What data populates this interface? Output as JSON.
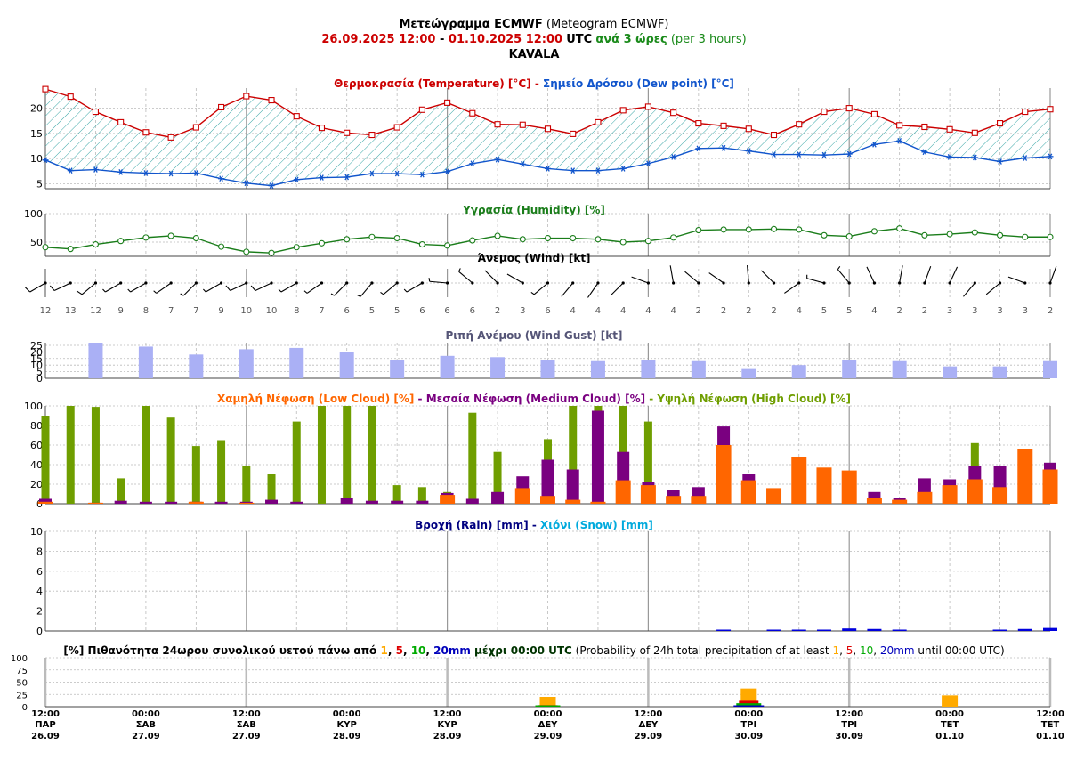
{
  "header": {
    "title_gr": "Μετεώγραμμα ECMWF",
    "title_en": "(Meteogram ECMWF)",
    "period_start": "26.09.2025 12:00",
    "period_dash": " - ",
    "period_end": "01.10.2025 12:00",
    "utc": "UTC",
    "step_gr": "ανά 3 ώρες",
    "step_en": "(per 3 hours)",
    "location": "KAVALA"
  },
  "colors": {
    "temperature": "#cc0000",
    "dewpoint": "#1155cc",
    "humidity": "#1a7d1a",
    "gust_bar": "#aab0f5",
    "gust_title": "#555577",
    "low_cloud": "#ff6600",
    "medium_cloud": "#7a0080",
    "high_cloud": "#6f9e00",
    "rain_title": "#000080",
    "rain_bar": "#0000dd",
    "snow_title": "#00aadd",
    "prob1": "#ffaa00",
    "prob5": "#dd0000",
    "prob10": "#00aa00",
    "prob20": "#0000bb",
    "hatch": "#3aa7a7"
  },
  "time_axis": {
    "steps": 41,
    "ticks": [
      {
        "time": "12:00",
        "day": "ΠΑΡ",
        "date": "26.09"
      },
      {
        "time": "00:00",
        "day": "ΣΑΒ",
        "date": "27.09"
      },
      {
        "time": "12:00",
        "day": "ΣΑΒ",
        "date": "27.09"
      },
      {
        "time": "00:00",
        "day": "ΚΥΡ",
        "date": "28.09"
      },
      {
        "time": "12:00",
        "day": "ΚΥΡ",
        "date": "28.09"
      },
      {
        "time": "00:00",
        "day": "ΔΕΥ",
        "date": "29.09"
      },
      {
        "time": "12:00",
        "day": "ΔΕΥ",
        "date": "29.09"
      },
      {
        "time": "00:00",
        "day": "ΤΡΙ",
        "date": "30.09"
      },
      {
        "time": "12:00",
        "day": "ΤΡΙ",
        "date": "30.09"
      },
      {
        "time": "00:00",
        "day": "ΤΕΤ",
        "date": "01.10"
      },
      {
        "time": "12:00",
        "day": "ΤΕΤ",
        "date": "01.10"
      }
    ]
  },
  "chart_data": [
    {
      "id": "temperature",
      "type": "line",
      "title_parts": [
        {
          "text": "Θερμοκρασία (Temperature) [°C]",
          "color": "temperature"
        },
        {
          "text": " - ",
          "color": "temperature"
        },
        {
          "text": "Σημείο Δρόσου (Dew point) [°C]",
          "color": "dewpoint"
        }
      ],
      "ylim": [
        4,
        24
      ],
      "yticks": [
        5,
        10,
        15,
        20
      ],
      "series": [
        {
          "name": "Θερμοκρασία (Temperature) [°C]",
          "values": [
            23.8,
            22.3,
            19.3,
            17.2,
            15.2,
            14.2,
            16.2,
            20.2,
            22.4,
            21.6,
            18.4,
            16.1,
            15.1,
            14.7,
            16.2,
            19.7,
            21.1,
            19.0,
            16.8,
            16.7,
            15.9,
            14.9,
            17.2,
            19.6,
            20.3,
            19.1,
            17.0,
            16.5,
            15.9,
            14.7,
            16.8,
            19.3,
            20.0,
            18.8,
            16.6,
            16.3,
            15.8,
            15.1,
            17.0,
            19.3,
            19.8
          ]
        },
        {
          "name": "Σημείο Δρόσου (Dew point) [°C]",
          "values": [
            9.7,
            7.6,
            7.8,
            7.3,
            7.1,
            7.0,
            7.1,
            6.0,
            5.1,
            4.6,
            5.8,
            6.2,
            6.3,
            7.0,
            7.0,
            6.8,
            7.4,
            9.0,
            9.8,
            8.9,
            8.0,
            7.6,
            7.6,
            8.0,
            9.0,
            10.3,
            12.0,
            12.1,
            11.5,
            10.8,
            10.8,
            10.7,
            10.9,
            12.8,
            13.5,
            11.3,
            10.3,
            10.2,
            9.4,
            10.1,
            10.4
          ]
        }
      ]
    },
    {
      "id": "humidity",
      "type": "line",
      "title": "Υγρασία (Humidity) [%]",
      "ylim": [
        25,
        100
      ],
      "yticks": [
        50,
        100
      ],
      "series": [
        {
          "name": "Υγρασία (Humidity) [%]",
          "values": [
            41,
            38,
            46,
            52,
            58,
            61,
            57,
            42,
            33,
            31,
            41,
            48,
            55,
            59,
            57,
            46,
            44,
            53,
            61,
            55,
            57,
            57,
            55,
            50,
            52,
            58,
            71,
            72,
            72,
            73,
            72,
            62,
            60,
            69,
            74,
            62,
            64,
            67,
            62,
            59,
            59
          ]
        }
      ]
    },
    {
      "id": "wind",
      "type": "wind",
      "title": "Άνεμος (Wind) [kt]",
      "speeds": [
        12,
        13,
        12,
        9,
        8,
        7,
        7,
        9,
        10,
        10,
        8,
        7,
        6,
        5,
        5,
        6,
        6,
        6,
        2,
        3,
        6,
        4,
        4,
        4,
        4,
        4,
        2,
        2,
        2,
        2,
        4,
        5,
        5,
        4,
        2,
        2,
        3,
        3,
        3,
        3,
        2
      ],
      "directions_deg": [
        240,
        245,
        230,
        240,
        240,
        235,
        225,
        240,
        245,
        245,
        240,
        235,
        225,
        220,
        230,
        240,
        275,
        310,
        315,
        300,
        230,
        220,
        215,
        225,
        290,
        350,
        310,
        305,
        355,
        315,
        235,
        285,
        320,
        335,
        10,
        20,
        25,
        220,
        230,
        290,
        20
      ]
    },
    {
      "id": "gust",
      "type": "bar",
      "title": "Ριπή Ανέμου (Wind Gust) [kt]",
      "ylim": [
        0,
        27
      ],
      "yticks": [
        0,
        5,
        10,
        15,
        20,
        25
      ],
      "x_index": [
        2,
        4,
        6,
        8,
        10,
        12,
        14,
        16,
        18,
        20,
        22,
        24,
        26,
        28,
        30,
        32,
        34,
        36,
        38,
        40
      ],
      "values": [
        27,
        24,
        18,
        22,
        23,
        20,
        14,
        17,
        16,
        14,
        13,
        14,
        13,
        7,
        10,
        14,
        13,
        9,
        9,
        13
      ]
    },
    {
      "id": "cloud",
      "type": "bar",
      "title_parts": [
        {
          "text": "Χαμηλή Νέφωση (Low Cloud) [%]",
          "color": "low_cloud"
        },
        {
          "text": " - ",
          "color": "medium_cloud"
        },
        {
          "text": "Μεσαία Νέφωση (Medium Cloud) [%]",
          "color": "medium_cloud"
        },
        {
          "text": " - ",
          "color": "high_cloud"
        },
        {
          "text": "Υψηλή Νέφωση (High Cloud) [%]",
          "color": "high_cloud"
        }
      ],
      "ylim": [
        0,
        100
      ],
      "yticks": [
        0,
        20,
        40,
        60,
        80,
        100
      ],
      "series": [
        {
          "name": "Υψηλή Νέφωση (High Cloud) [%]",
          "values": [
            90,
            100,
            99,
            26,
            100,
            88,
            59,
            65,
            39,
            30,
            84,
            100,
            100,
            100,
            19,
            17,
            12,
            93,
            53,
            20,
            66,
            100,
            100,
            100,
            84,
            10,
            10,
            8,
            25,
            5,
            5,
            5,
            5,
            8,
            5,
            5,
            25,
            62,
            0,
            0,
            0
          ]
        },
        {
          "name": "Μεσαία Νέφωση (Medium Cloud) [%]",
          "values": [
            5,
            0,
            1,
            3,
            2,
            2,
            2,
            2,
            2,
            4,
            2,
            0,
            6,
            3,
            3,
            3,
            11,
            5,
            12,
            28,
            45,
            35,
            95,
            53,
            22,
            14,
            17,
            79,
            30,
            2,
            0,
            0,
            0,
            12,
            6,
            26,
            25,
            39,
            39,
            0,
            42
          ]
        },
        {
          "name": "Χαμηλή Νέφωση (Low Cloud) [%]",
          "values": [
            2,
            0,
            1,
            0,
            0,
            0,
            2,
            0,
            1,
            0,
            0,
            0,
            0,
            0,
            0,
            0,
            9,
            0,
            0,
            16,
            8,
            4,
            2,
            24,
            19,
            8,
            8,
            60,
            24,
            16,
            48,
            37,
            34,
            6,
            4,
            12,
            19,
            25,
            17,
            56,
            35
          ]
        }
      ]
    },
    {
      "id": "precip",
      "type": "bar",
      "title_parts": [
        {
          "text": "Βροχή (Rain) [mm]",
          "color": "rain_title"
        },
        {
          "text": " - ",
          "color": "rain_title"
        },
        {
          "text": "Χιόνι (Snow) [mm]",
          "color": "snow_title"
        }
      ],
      "ylim": [
        0,
        10
      ],
      "yticks": [
        0,
        2,
        4,
        6,
        8,
        10
      ],
      "rain": [
        0,
        0,
        0,
        0,
        0,
        0,
        0,
        0,
        0,
        0,
        0,
        0,
        0,
        0,
        0,
        0,
        0,
        0,
        0,
        0,
        0,
        0,
        0,
        0,
        0,
        0,
        0,
        0.1,
        0,
        0.05,
        0.1,
        0.1,
        0.25,
        0.2,
        0.1,
        0,
        0,
        0,
        0.05,
        0.2,
        0.3
      ],
      "snow": [
        0,
        0,
        0,
        0,
        0,
        0,
        0,
        0,
        0,
        0,
        0,
        0,
        0,
        0,
        0,
        0,
        0,
        0,
        0,
        0,
        0,
        0,
        0,
        0,
        0,
        0,
        0,
        0,
        0,
        0,
        0,
        0,
        0,
        0,
        0,
        0,
        0,
        0,
        0,
        0,
        0
      ]
    },
    {
      "id": "probability",
      "type": "bar",
      "title_parts": [
        {
          "text": "[%] Πιθανότητα 24ωρου συνολικού υετού πάνω από ",
          "color": "#000000",
          "bold": true
        },
        {
          "text": "1",
          "color": "prob1",
          "bold": true
        },
        {
          "text": ", ",
          "color": "#000000",
          "bold": true
        },
        {
          "text": "5",
          "color": "prob5",
          "bold": true
        },
        {
          "text": ", ",
          "color": "#000000",
          "bold": true
        },
        {
          "text": "10",
          "color": "prob10",
          "bold": true
        },
        {
          "text": ", ",
          "color": "#000000",
          "bold": true
        },
        {
          "text": "20mm",
          "color": "prob20",
          "bold": true
        },
        {
          "text": " μέχρι 00:00 UTC",
          "color": "#003300",
          "bold": true
        },
        {
          "text": " (Probability of 24h total precipitation of at least ",
          "color": "#000000",
          "bold": false
        },
        {
          "text": "1",
          "color": "prob1",
          "bold": false
        },
        {
          "text": ", ",
          "color": "#000000",
          "bold": false
        },
        {
          "text": "5",
          "color": "prob5",
          "bold": false
        },
        {
          "text": ", ",
          "color": "#000000",
          "bold": false
        },
        {
          "text": "10",
          "color": "prob10",
          "bold": false
        },
        {
          "text": ", ",
          "color": "#000000",
          "bold": false
        },
        {
          "text": "20mm",
          "color": "prob20",
          "bold": false
        },
        {
          "text": " until 00:00 UTC)",
          "color": "#000000",
          "bold": false
        }
      ],
      "ylim": [
        0,
        100
      ],
      "yticks": [
        0,
        25,
        50,
        75,
        100
      ],
      "x_index": [
        20,
        28,
        36
      ],
      "series": [
        {
          "name": "1",
          "values": [
            20,
            37,
            23
          ]
        },
        {
          "name": "5",
          "values": [
            3,
            12,
            0
          ]
        },
        {
          "name": "10",
          "values": [
            1,
            7,
            0
          ]
        },
        {
          "name": "20mm",
          "values": [
            0,
            2,
            0
          ]
        }
      ]
    }
  ]
}
